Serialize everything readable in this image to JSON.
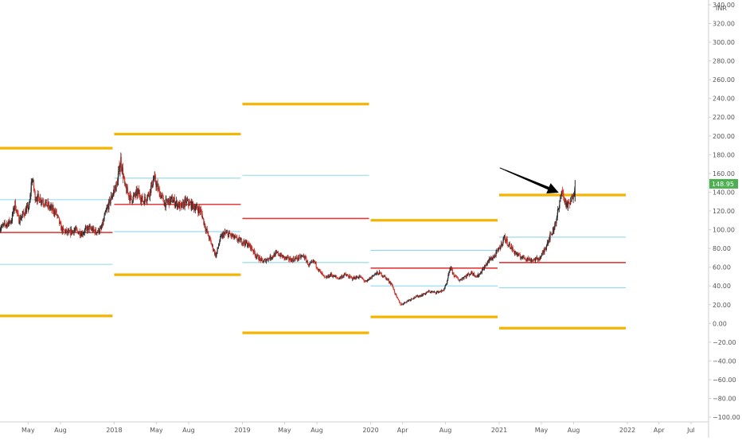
{
  "chart_data": {
    "type": "candlestick",
    "currency_label": "INR",
    "last_price_label": "148.95",
    "ylim": [
      -105,
      345
    ],
    "y_ticks": [
      "340.00",
      "320.00",
      "300.00",
      "280.00",
      "260.00",
      "240.00",
      "220.00",
      "200.00",
      "180.00",
      "160.00",
      "140.00",
      "120.00",
      "100.00",
      "80.00",
      "60.00",
      "40.00",
      "20.00",
      "0.00",
      "−20.00",
      "−40.00",
      "−60.00",
      "−80.00",
      "−100.00"
    ],
    "y_tick_values": [
      340,
      320,
      300,
      280,
      260,
      240,
      220,
      200,
      180,
      160,
      140,
      120,
      100,
      80,
      60,
      40,
      20,
      0,
      -20,
      -40,
      -60,
      -80,
      -100
    ],
    "xlim": [
      "2017-02-10",
      "2022-08-20"
    ],
    "x_ticks": [
      {
        "label": "May",
        "date": "2017-05-01"
      },
      {
        "label": "Aug",
        "date": "2017-08-01"
      },
      {
        "label": "2018",
        "date": "2018-01-01"
      },
      {
        "label": "May",
        "date": "2018-05-01"
      },
      {
        "label": "Aug",
        "date": "2018-08-01"
      },
      {
        "label": "2019",
        "date": "2019-01-01"
      },
      {
        "label": "May",
        "date": "2019-05-01"
      },
      {
        "label": "Aug",
        "date": "2019-08-01"
      },
      {
        "label": "2020",
        "date": "2020-01-01"
      },
      {
        "label": "Apr",
        "date": "2020-04-01"
      },
      {
        "label": "Aug",
        "date": "2020-08-01"
      },
      {
        "label": "2021",
        "date": "2021-01-01"
      },
      {
        "label": "May",
        "date": "2021-05-01"
      },
      {
        "label": "Aug",
        "date": "2021-08-01"
      },
      {
        "label": "2022",
        "date": "2022-01-01"
      },
      {
        "label": "Apr",
        "date": "2022-04-01"
      },
      {
        "label": "Jul",
        "date": "2022-07-01"
      }
    ],
    "price_path": [
      [
        "2017-02-10",
        102
      ],
      [
        "2017-02-25",
        105
      ],
      [
        "2017-03-15",
        110
      ],
      [
        "2017-03-25",
        128
      ],
      [
        "2017-04-05",
        110
      ],
      [
        "2017-04-20",
        118
      ],
      [
        "2017-05-05",
        125
      ],
      [
        "2017-05-12",
        155
      ],
      [
        "2017-05-22",
        135
      ],
      [
        "2017-06-10",
        132
      ],
      [
        "2017-07-01",
        124
      ],
      [
        "2017-07-20",
        118
      ],
      [
        "2017-08-05",
        100
      ],
      [
        "2017-08-25",
        96
      ],
      [
        "2017-09-10",
        100
      ],
      [
        "2017-10-01",
        96
      ],
      [
        "2017-10-20",
        102
      ],
      [
        "2017-11-10",
        98
      ],
      [
        "2017-11-25",
        100
      ],
      [
        "2017-12-10",
        120
      ],
      [
        "2017-12-28",
        138
      ],
      [
        "2018-01-10",
        150
      ],
      [
        "2018-01-20",
        175
      ],
      [
        "2018-02-01",
        145
      ],
      [
        "2018-02-20",
        132
      ],
      [
        "2018-03-10",
        140
      ],
      [
        "2018-03-25",
        130
      ],
      [
        "2018-04-10",
        138
      ],
      [
        "2018-04-25",
        155
      ],
      [
        "2018-05-10",
        140
      ],
      [
        "2018-05-25",
        128
      ],
      [
        "2018-06-15",
        132
      ],
      [
        "2018-07-10",
        124
      ],
      [
        "2018-07-25",
        130
      ],
      [
        "2018-08-15",
        125
      ],
      [
        "2018-09-05",
        120
      ],
      [
        "2018-09-20",
        100
      ],
      [
        "2018-10-05",
        85
      ],
      [
        "2018-10-18",
        72
      ],
      [
        "2018-10-30",
        90
      ],
      [
        "2018-11-10",
        96
      ],
      [
        "2018-11-25",
        95
      ],
      [
        "2018-12-15",
        90
      ],
      [
        "2019-01-10",
        86
      ],
      [
        "2019-01-25",
        82
      ],
      [
        "2019-02-10",
        72
      ],
      [
        "2019-03-01",
        66
      ],
      [
        "2019-03-20",
        70
      ],
      [
        "2019-04-10",
        75
      ],
      [
        "2019-05-01",
        70
      ],
      [
        "2019-05-20",
        68
      ],
      [
        "2019-06-10",
        70
      ],
      [
        "2019-06-25",
        72
      ],
      [
        "2019-07-10",
        62
      ],
      [
        "2019-07-25",
        66
      ],
      [
        "2019-08-10",
        55
      ],
      [
        "2019-08-25",
        48
      ],
      [
        "2019-09-10",
        52
      ],
      [
        "2019-10-01",
        48
      ],
      [
        "2019-10-20",
        52
      ],
      [
        "2019-11-10",
        48
      ],
      [
        "2019-12-01",
        50
      ],
      [
        "2019-12-20",
        44
      ],
      [
        "2020-01-10",
        52
      ],
      [
        "2020-01-25",
        54
      ],
      [
        "2020-02-10",
        50
      ],
      [
        "2020-03-01",
        42
      ],
      [
        "2020-03-15",
        28
      ],
      [
        "2020-03-28",
        20
      ],
      [
        "2020-04-15",
        24
      ],
      [
        "2020-05-05",
        28
      ],
      [
        "2020-05-25",
        30
      ],
      [
        "2020-06-15",
        34
      ],
      [
        "2020-07-05",
        33
      ],
      [
        "2020-07-25",
        35
      ],
      [
        "2020-08-05",
        42
      ],
      [
        "2020-08-15",
        60
      ],
      [
        "2020-08-25",
        52
      ],
      [
        "2020-09-10",
        46
      ],
      [
        "2020-09-25",
        50
      ],
      [
        "2020-10-15",
        54
      ],
      [
        "2020-11-01",
        50
      ],
      [
        "2020-11-20",
        60
      ],
      [
        "2020-12-05",
        68
      ],
      [
        "2020-12-20",
        72
      ],
      [
        "2021-01-05",
        82
      ],
      [
        "2021-01-15",
        92
      ],
      [
        "2021-01-28",
        85
      ],
      [
        "2021-02-10",
        78
      ],
      [
        "2021-02-25",
        72
      ],
      [
        "2021-03-15",
        70
      ],
      [
        "2021-03-30",
        68
      ],
      [
        "2021-04-15",
        68
      ],
      [
        "2021-04-28",
        70
      ],
      [
        "2021-05-10",
        78
      ],
      [
        "2021-05-22",
        90
      ],
      [
        "2021-06-05",
        100
      ],
      [
        "2021-06-15",
        115
      ],
      [
        "2021-06-22",
        125
      ],
      [
        "2021-06-28",
        145
      ],
      [
        "2021-07-05",
        132
      ],
      [
        "2021-07-15",
        125
      ],
      [
        "2021-07-25",
        130
      ],
      [
        "2021-08-01",
        140
      ],
      [
        "2021-08-05",
        149
      ]
    ],
    "spike": {
      "date": "2021-08-05",
      "high": 153
    },
    "pivot_periods": [
      {
        "start": "2017-02-10",
        "end": "2018-01-01",
        "r": 187,
        "p": 97,
        "s_mid": 63,
        "r_mid": 132,
        "s": 8
      },
      {
        "start": "2018-01-01",
        "end": "2019-01-01",
        "r": 202,
        "p": 127,
        "s_mid": 98,
        "r_mid": 155,
        "s": 52
      },
      {
        "start": "2019-01-01",
        "end": "2020-01-01",
        "r": 234,
        "p": 112,
        "s_mid": 65,
        "r_mid": 158,
        "s": -10
      },
      {
        "start": "2020-01-01",
        "end": "2021-01-01",
        "r": 110,
        "p": 59,
        "s_mid": 40,
        "r_mid": 78,
        "s": 7
      },
      {
        "start": "2021-01-01",
        "end": "2022-01-01",
        "r": 137,
        "p": 65,
        "s_mid": 38,
        "r_mid": 92,
        "s": -5
      }
    ],
    "colors": {
      "pivot_outer": "#f5b400",
      "pivot_main": "#e23b3b",
      "pivot_inner": "#8ed8ec",
      "candle": "#2a2a2a",
      "candle_red": "#d8342c",
      "badge": "#4caf50",
      "arrow": "#000000",
      "axis_text": "#555555",
      "axis_line": "#cfcfcf"
    }
  }
}
